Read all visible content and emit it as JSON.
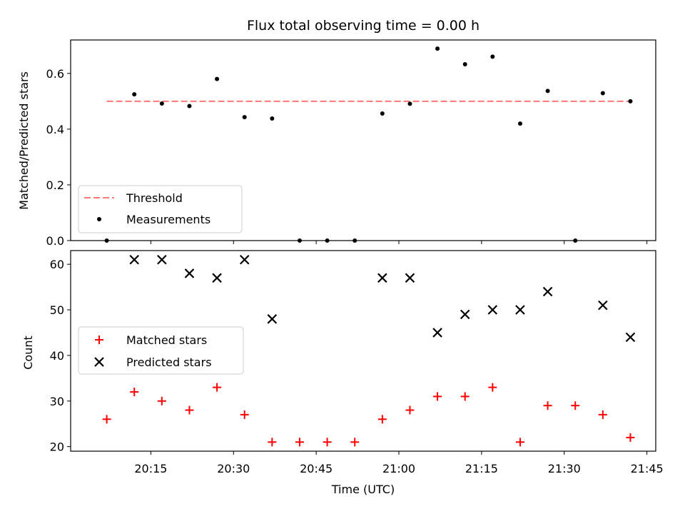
{
  "title": "Flux total observing time = 0.00 h",
  "colors": {
    "threshold": "#ff7777",
    "measurement": "#000000",
    "matched": "#ff0000",
    "predicted": "#000000"
  },
  "chart_data": [
    {
      "type": "scatter",
      "panel": "top",
      "title": "Flux total observing time = 0.00 h",
      "xlabel": "",
      "ylabel": "Matched/Predicted stars",
      "ylim": [
        0,
        0.72
      ],
      "yticks": [
        "0.0",
        "0.2",
        "0.4",
        "0.6"
      ],
      "grid": false,
      "legend_position": "lower-left",
      "x": [
        "20:07",
        "20:12",
        "20:17",
        "20:22",
        "20:27",
        "20:32",
        "20:37",
        "20:42",
        "20:47",
        "20:52",
        "20:57",
        "21:02",
        "21:07",
        "21:12",
        "21:17",
        "21:22",
        "21:27",
        "21:32",
        "21:37",
        "21:42"
      ],
      "series": [
        {
          "name": "Threshold",
          "style": "dashed-line",
          "values": [
            0.5,
            0.5
          ]
        },
        {
          "name": "Measurements",
          "style": "dot",
          "values": [
            0.0,
            0.525,
            0.492,
            0.483,
            0.58,
            0.443,
            0.438,
            0.0,
            0.0,
            0.0,
            0.456,
            0.491,
            0.689,
            0.633,
            0.66,
            0.42,
            0.537,
            0.0,
            0.529,
            0.5
          ]
        }
      ]
    },
    {
      "type": "scatter",
      "panel": "bottom",
      "xlabel": "Time (UTC)",
      "ylabel": "Count",
      "ylim": [
        19,
        63
      ],
      "yticks": [
        "20",
        "30",
        "40",
        "50",
        "60"
      ],
      "xticks": [
        "20:15",
        "20:30",
        "20:45",
        "21:00",
        "21:15",
        "21:30",
        "21:45"
      ],
      "grid": false,
      "legend_position": "center-left",
      "x": [
        "20:07",
        "20:12",
        "20:17",
        "20:22",
        "20:27",
        "20:32",
        "20:37",
        "20:42",
        "20:47",
        "20:52",
        "20:57",
        "21:02",
        "21:07",
        "21:12",
        "21:17",
        "21:22",
        "21:27",
        "21:32",
        "21:37",
        "21:42"
      ],
      "series": [
        {
          "name": "Matched stars",
          "marker": "plus",
          "values": [
            26,
            32,
            30,
            28,
            33,
            27,
            21,
            21,
            21,
            21,
            26,
            28,
            31,
            31,
            33,
            21,
            29,
            29,
            27,
            22
          ]
        },
        {
          "name": "Predicted stars",
          "marker": "x",
          "values": [
            null,
            61,
            61,
            58,
            57,
            61,
            48,
            null,
            null,
            null,
            57,
            57,
            45,
            49,
            50,
            50,
            54,
            null,
            51,
            44
          ]
        }
      ]
    }
  ]
}
